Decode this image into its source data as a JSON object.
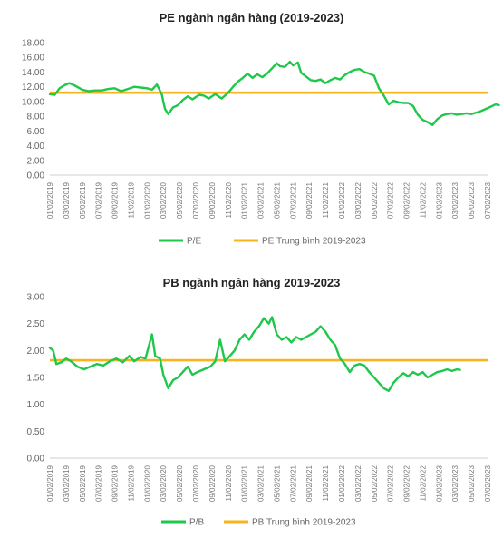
{
  "colors": {
    "series": "#1ec84b",
    "average": "#f7b41c",
    "axis": "#cfcfcf"
  },
  "chart_data": [
    {
      "type": "line",
      "title": "PE ngành ngân hàng (2019-2023)",
      "ylim": [
        0,
        18
      ],
      "yticks": [
        "0.00",
        "2.00",
        "4.00",
        "6.00",
        "8.00",
        "10.00",
        "12.00",
        "14.00",
        "16.00",
        "18.00"
      ],
      "xticks": [
        "01/02/2019",
        "03/02/2019",
        "05/02/2019",
        "07/02/2019",
        "09/02/2019",
        "11/02/2019",
        "01/02/2020",
        "03/02/2020",
        "05/02/2020",
        "07/02/2020",
        "09/02/2020",
        "11/02/2020",
        "01/02/2021",
        "03/02/2021",
        "05/02/2021",
        "07/02/2021",
        "09/02/2021",
        "11/02/2021",
        "01/02/2022",
        "03/02/2022",
        "05/02/2022",
        "07/02/2022",
        "09/02/2022",
        "11/02/2022",
        "01/02/2023",
        "03/02/2023",
        "05/02/2023",
        "07/02/2023"
      ],
      "series": [
        {
          "name": "P/E",
          "values": [
            [
              0,
              11.0
            ],
            [
              0.3,
              10.9
            ],
            [
              0.6,
              11.8
            ],
            [
              0.9,
              12.2
            ],
            [
              1.2,
              12.5
            ],
            [
              1.6,
              12.1
            ],
            [
              2.0,
              11.6
            ],
            [
              2.4,
              11.4
            ],
            [
              2.8,
              11.5
            ],
            [
              3.2,
              11.5
            ],
            [
              3.6,
              11.7
            ],
            [
              4.0,
              11.8
            ],
            [
              4.4,
              11.4
            ],
            [
              4.8,
              11.7
            ],
            [
              5.2,
              12.0
            ],
            [
              5.6,
              11.9
            ],
            [
              6.0,
              11.8
            ],
            [
              6.3,
              11.6
            ],
            [
              6.6,
              12.3
            ],
            [
              6.9,
              11.0
            ],
            [
              7.1,
              9.0
            ],
            [
              7.3,
              8.3
            ],
            [
              7.6,
              9.2
            ],
            [
              7.9,
              9.5
            ],
            [
              8.2,
              10.2
            ],
            [
              8.5,
              10.7
            ],
            [
              8.8,
              10.3
            ],
            [
              9.2,
              10.9
            ],
            [
              9.5,
              10.8
            ],
            [
              9.8,
              10.4
            ],
            [
              10.2,
              11.0
            ],
            [
              10.6,
              10.4
            ],
            [
              11.0,
              11.2
            ],
            [
              11.3,
              12.0
            ],
            [
              11.6,
              12.7
            ],
            [
              11.9,
              13.2
            ],
            [
              12.2,
              13.8
            ],
            [
              12.5,
              13.2
            ],
            [
              12.8,
              13.7
            ],
            [
              13.1,
              13.3
            ],
            [
              13.4,
              13.8
            ],
            [
              13.7,
              14.5
            ],
            [
              14.0,
              15.2
            ],
            [
              14.2,
              14.8
            ],
            [
              14.5,
              14.7
            ],
            [
              14.8,
              15.4
            ],
            [
              15.0,
              14.9
            ],
            [
              15.3,
              15.3
            ],
            [
              15.5,
              13.9
            ],
            [
              15.8,
              13.4
            ],
            [
              16.1,
              12.9
            ],
            [
              16.4,
              12.8
            ],
            [
              16.7,
              13.0
            ],
            [
              17.0,
              12.5
            ],
            [
              17.3,
              12.9
            ],
            [
              17.6,
              13.2
            ],
            [
              17.9,
              13.0
            ],
            [
              18.2,
              13.6
            ],
            [
              18.5,
              14.0
            ],
            [
              18.8,
              14.3
            ],
            [
              19.1,
              14.4
            ],
            [
              19.4,
              14.0
            ],
            [
              19.7,
              13.8
            ],
            [
              20.0,
              13.5
            ],
            [
              20.3,
              11.8
            ],
            [
              20.6,
              10.8
            ],
            [
              20.9,
              9.6
            ],
            [
              21.2,
              10.1
            ],
            [
              21.5,
              9.9
            ],
            [
              21.8,
              9.8
            ],
            [
              22.1,
              9.8
            ],
            [
              22.4,
              9.4
            ],
            [
              22.7,
              8.2
            ],
            [
              23.0,
              7.5
            ],
            [
              23.3,
              7.2
            ],
            [
              23.6,
              6.8
            ],
            [
              23.9,
              7.6
            ],
            [
              24.2,
              8.1
            ],
            [
              24.5,
              8.3
            ],
            [
              24.8,
              8.4
            ],
            [
              25.1,
              8.2
            ],
            [
              25.4,
              8.3
            ],
            [
              25.7,
              8.4
            ],
            [
              26.0,
              8.3
            ],
            [
              26.3,
              8.5
            ],
            [
              26.6,
              8.7
            ],
            [
              26.9,
              9.0
            ],
            [
              27.2,
              9.3
            ],
            [
              27.5,
              9.6
            ],
            [
              27.7,
              9.5
            ]
          ]
        },
        {
          "name": "PE Trung bình 2019-2023",
          "value": 11.2
        }
      ],
      "legend": "bottom"
    },
    {
      "type": "line",
      "title": "PB ngành ngân hàng 2019-2023",
      "ylim": [
        0,
        3
      ],
      "yticks": [
        "0.00",
        "0.50",
        "1.00",
        "1.50",
        "2.00",
        "2.50",
        "3.00"
      ],
      "xticks": [
        "01/02/2019",
        "03/02/2019",
        "05/02/2019",
        "07/02/2019",
        "09/02/2019",
        "11/02/2019",
        "01/02/2020",
        "03/02/2020",
        "05/02/2020",
        "07/02/2020",
        "09/02/2020",
        "11/02/2020",
        "01/02/2021",
        "03/02/2021",
        "05/02/2021",
        "07/02/2021",
        "09/02/2021",
        "11/02/2021",
        "01/02/2022",
        "03/02/2022",
        "05/02/2022",
        "07/02/2022",
        "09/02/2022",
        "11/02/2022",
        "01/02/2023",
        "03/02/2023",
        "05/02/2023",
        "07/02/2023"
      ],
      "series": [
        {
          "name": "P/B",
          "values": [
            [
              0,
              2.05
            ],
            [
              0.2,
              2.0
            ],
            [
              0.4,
              1.75
            ],
            [
              0.7,
              1.78
            ],
            [
              1.0,
              1.85
            ],
            [
              1.3,
              1.8
            ],
            [
              1.7,
              1.7
            ],
            [
              2.1,
              1.65
            ],
            [
              2.5,
              1.7
            ],
            [
              2.9,
              1.75
            ],
            [
              3.3,
              1.72
            ],
            [
              3.7,
              1.8
            ],
            [
              4.1,
              1.85
            ],
            [
              4.5,
              1.78
            ],
            [
              4.9,
              1.9
            ],
            [
              5.2,
              1.8
            ],
            [
              5.6,
              1.88
            ],
            [
              5.9,
              1.85
            ],
            [
              6.3,
              2.3
            ],
            [
              6.5,
              1.9
            ],
            [
              6.8,
              1.85
            ],
            [
              7.0,
              1.55
            ],
            [
              7.3,
              1.3
            ],
            [
              7.6,
              1.45
            ],
            [
              7.9,
              1.5
            ],
            [
              8.2,
              1.6
            ],
            [
              8.5,
              1.7
            ],
            [
              8.8,
              1.55
            ],
            [
              9.1,
              1.6
            ],
            [
              9.5,
              1.65
            ],
            [
              9.9,
              1.7
            ],
            [
              10.2,
              1.8
            ],
            [
              10.5,
              2.2
            ],
            [
              10.8,
              1.8
            ],
            [
              11.1,
              1.9
            ],
            [
              11.4,
              2.0
            ],
            [
              11.7,
              2.2
            ],
            [
              12.0,
              2.3
            ],
            [
              12.3,
              2.2
            ],
            [
              12.6,
              2.35
            ],
            [
              12.9,
              2.45
            ],
            [
              13.2,
              2.6
            ],
            [
              13.5,
              2.5
            ],
            [
              13.7,
              2.62
            ],
            [
              14.0,
              2.3
            ],
            [
              14.3,
              2.2
            ],
            [
              14.6,
              2.25
            ],
            [
              14.9,
              2.15
            ],
            [
              15.2,
              2.25
            ],
            [
              15.5,
              2.2
            ],
            [
              15.8,
              2.25
            ],
            [
              16.1,
              2.3
            ],
            [
              16.4,
              2.35
            ],
            [
              16.7,
              2.45
            ],
            [
              17.0,
              2.35
            ],
            [
              17.3,
              2.2
            ],
            [
              17.6,
              2.1
            ],
            [
              17.9,
              1.85
            ],
            [
              18.2,
              1.75
            ],
            [
              18.5,
              1.6
            ],
            [
              18.8,
              1.72
            ],
            [
              19.1,
              1.75
            ],
            [
              19.4,
              1.72
            ],
            [
              19.7,
              1.6
            ],
            [
              20.0,
              1.5
            ],
            [
              20.3,
              1.4
            ],
            [
              20.6,
              1.3
            ],
            [
              20.9,
              1.25
            ],
            [
              21.2,
              1.4
            ],
            [
              21.5,
              1.5
            ],
            [
              21.8,
              1.58
            ],
            [
              22.1,
              1.52
            ],
            [
              22.4,
              1.6
            ],
            [
              22.7,
              1.55
            ],
            [
              23.0,
              1.6
            ],
            [
              23.3,
              1.5
            ],
            [
              23.6,
              1.55
            ],
            [
              23.9,
              1.6
            ],
            [
              24.2,
              1.62
            ],
            [
              24.5,
              1.65
            ],
            [
              24.8,
              1.62
            ],
            [
              25.1,
              1.65
            ],
            [
              25.3,
              1.64
            ]
          ]
        },
        {
          "name": "PB Trung bình 2019-2023",
          "value": 1.82
        }
      ],
      "legend": "bottom"
    }
  ]
}
